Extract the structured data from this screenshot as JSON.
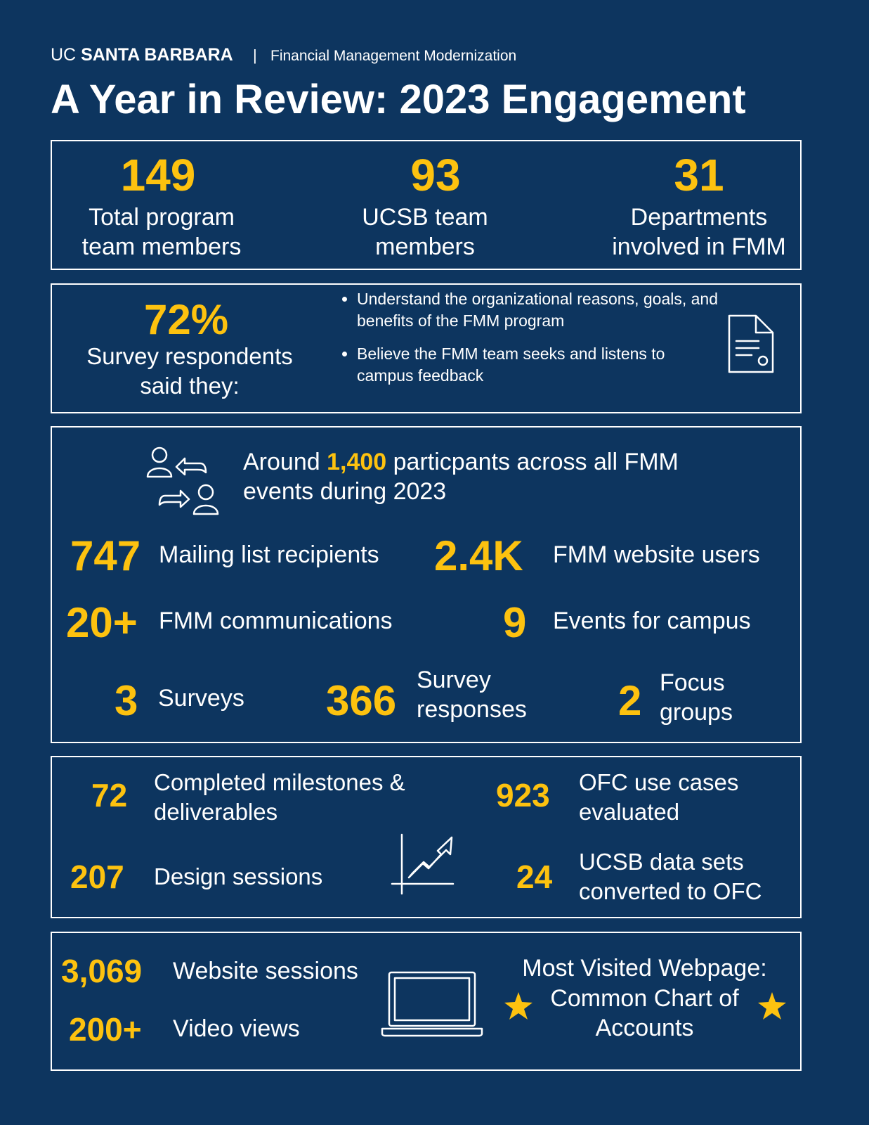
{
  "header": {
    "brand_uc": "UC",
    "brand_name": "SANTA BARBARA",
    "program": "Financial Management Modernization",
    "title": "A Year in Review: 2023 Engagement"
  },
  "team": {
    "items": [
      {
        "value": "149",
        "label": "Total program team members"
      },
      {
        "value": "93",
        "label": "UCSB team members"
      },
      {
        "value": "31",
        "label": "Departments involved in FMM"
      }
    ]
  },
  "survey": {
    "value": "72%",
    "label": "Survey respondents said they:",
    "bullets": [
      "Understand the organizational reasons, goals, and benefits of the FMM program",
      "Believe the FMM team seeks and listens to campus feedback"
    ]
  },
  "participation": {
    "intro_before": "Around",
    "intro_value": "1,400",
    "intro_after": "particpants across all FMM events during 2023",
    "stats": [
      {
        "value": "747",
        "label": "Mailing list recipients"
      },
      {
        "value": "2.4K",
        "label": "FMM website users"
      },
      {
        "value": "20+",
        "label": "FMM communications"
      },
      {
        "value": "9",
        "label": "Events for campus"
      },
      {
        "value": "3",
        "label": "Surveys"
      },
      {
        "value": "366",
        "label": "Survey responses"
      },
      {
        "value": "2",
        "label": "Focus groups"
      }
    ]
  },
  "milestones": {
    "stats": [
      {
        "value": "72",
        "label": "Completed milestones & deliverables"
      },
      {
        "value": "923",
        "label": "OFC use cases evaluated"
      },
      {
        "value": "207",
        "label": "Design sessions"
      },
      {
        "value": "24",
        "label": "UCSB data sets converted to OFC"
      }
    ]
  },
  "web": {
    "stats": [
      {
        "value": "3,069",
        "label": "Website sessions"
      },
      {
        "value": "200+",
        "label": "Video views"
      }
    ],
    "most_visited": {
      "heading": "Most Visited Webpage:",
      "page": "Common Chart of Accounts"
    }
  }
}
